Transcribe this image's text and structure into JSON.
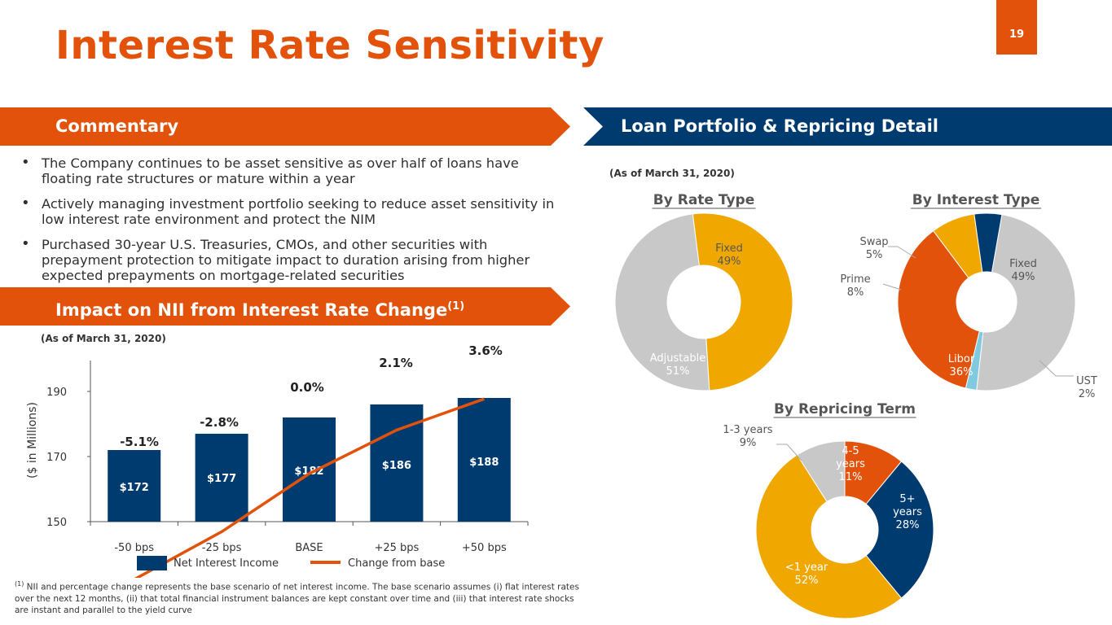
{
  "header": {
    "title": "Interest Rate Sensitivity",
    "page_number": "19"
  },
  "commentary": {
    "title": "Commentary",
    "bullets": [
      "The Company continues to be asset sensitive as over half of loans have floating rate structures or mature within a year",
      "Actively managing investment portfolio seeking to reduce asset sensitivity in low interest rate environment and protect the NIM",
      "Purchased 30-year U.S. Treasuries, CMOs, and other securities with prepayment protection to mitigate impact to duration arising from higher expected prepayments on mortgage-related securities"
    ]
  },
  "impact": {
    "title": "Impact on NII from Interest Rate Change",
    "title_sup": "(1)",
    "as_of": "(As of March 31, 2020)"
  },
  "loan_portfolio": {
    "title": "Loan Portfolio & Repricing Detail",
    "as_of": "(As of March 31, 2020)"
  },
  "colors": {
    "orange": "#e2520a",
    "navy": "#003b70",
    "grey": "#c8c8c8",
    "gold": "#f0a800",
    "lightblue": "#7fcadf"
  },
  "footnote": {
    "marker": "(1)",
    "text": " NII and percentage change represents the base scenario of  net interest income. The base scenario assumes (i) flat interest rates over the next 12 months, (ii) that total financial instrument balances are kept constant over time and (iii) that interest rate shocks are instant and parallel to the yield curve"
  },
  "chart_data": [
    {
      "type": "bar",
      "title": "Impact on NII from Interest Rate Change",
      "categories": [
        "-50 bps",
        "-25 bps",
        "BASE",
        "+25 bps",
        "+50 bps"
      ],
      "ylabel": "($ in Millions)",
      "ylim": [
        150,
        200
      ],
      "yticks": [
        150,
        170,
        190
      ],
      "series": [
        {
          "name": "Net Interest Income",
          "kind": "bar",
          "values": [
            172,
            177,
            182,
            186,
            188
          ],
          "labels": [
            "$172",
            "$177",
            "$182",
            "$186",
            "$188"
          ]
        },
        {
          "name": "Change from base",
          "kind": "line",
          "values": [
            -5.1,
            -2.8,
            0.0,
            2.1,
            3.6
          ],
          "labels": [
            "-5.1%",
            "-2.8%",
            "0.0%",
            "2.1%",
            "3.6%"
          ]
        }
      ],
      "legend": [
        "Net Interest Income",
        "Change from base"
      ]
    },
    {
      "type": "pie",
      "title": "By Rate Type",
      "slices": [
        {
          "label": "Fixed",
          "value": 49,
          "text": "49%",
          "color": "#c8c8c8"
        },
        {
          "label": "Adjustable",
          "value": 51,
          "text": "51%",
          "color": "#f0a800"
        }
      ]
    },
    {
      "type": "pie",
      "title": "By Interest Type",
      "slices": [
        {
          "label": "Fixed",
          "value": 49,
          "text": "49%",
          "color": "#c8c8c8"
        },
        {
          "label": "UST",
          "value": 2,
          "text": "2%",
          "color": "#7fcadf"
        },
        {
          "label": "Libor",
          "value": 36,
          "text": "36%",
          "color": "#e2520a"
        },
        {
          "label": "Prime",
          "value": 8,
          "text": "8%",
          "color": "#f0a800"
        },
        {
          "label": "Swap",
          "value": 5,
          "text": "5%",
          "color": "#003b70"
        }
      ]
    },
    {
      "type": "pie",
      "title": "By Repricing Term",
      "slices": [
        {
          "label": "4-5 years",
          "value": 11,
          "text": "11%",
          "color": "#e2520a"
        },
        {
          "label": "5+ years",
          "value": 28,
          "text": "28%",
          "color": "#003b70"
        },
        {
          "label": "<1 year",
          "value": 52,
          "text": "52%",
          "color": "#f0a800"
        },
        {
          "label": "1-3 years",
          "value": 9,
          "text": "9%",
          "color": "#c8c8c8"
        }
      ]
    }
  ]
}
